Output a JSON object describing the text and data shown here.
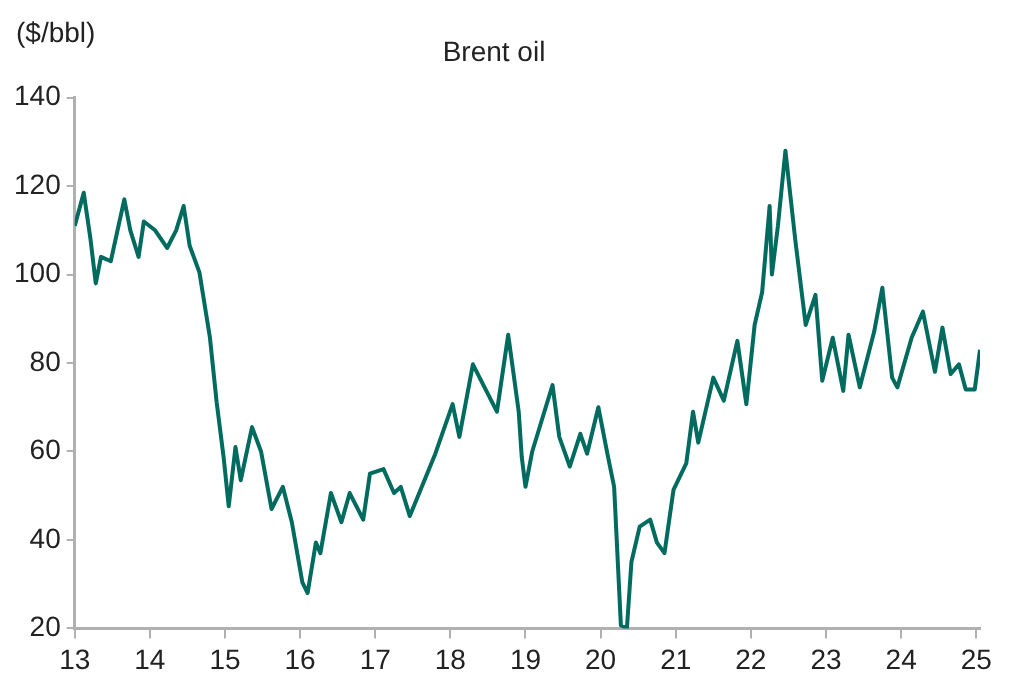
{
  "chart_data": {
    "type": "line",
    "title": "Brent oil",
    "ylabel": "($/bbl)",
    "x": [
      13.0,
      13.12,
      13.21,
      13.28,
      13.35,
      13.48,
      13.57,
      13.66,
      13.74,
      13.85,
      13.92,
      14.07,
      14.23,
      14.35,
      14.45,
      14.53,
      14.66,
      14.8,
      14.89,
      14.98,
      15.05,
      15.14,
      15.21,
      15.36,
      15.48,
      15.62,
      15.77,
      15.89,
      16.03,
      16.1,
      16.21,
      16.27,
      16.41,
      16.55,
      16.66,
      16.84,
      16.93,
      17.11,
      17.25,
      17.34,
      17.46,
      17.62,
      17.8,
      18.03,
      18.12,
      18.3,
      18.44,
      18.62,
      18.77,
      18.91,
      18.95,
      19.0,
      19.09,
      19.23,
      19.36,
      19.45,
      19.59,
      19.73,
      19.82,
      19.97,
      20.09,
      20.18,
      20.27,
      20.35,
      20.41,
      20.52,
      20.66,
      20.75,
      20.85,
      20.97,
      21.14,
      21.23,
      21.3,
      21.5,
      21.64,
      21.82,
      21.94,
      22.05,
      22.15,
      22.25,
      22.28,
      22.36,
      22.46,
      22.59,
      22.73,
      22.86,
      22.95,
      23.09,
      23.23,
      23.3,
      23.45,
      23.64,
      23.75,
      23.88,
      23.95,
      24.14,
      24.29,
      24.45,
      24.55,
      24.66,
      24.77,
      24.86,
      24.98,
      25.05
    ],
    "series": [
      {
        "color": "#006b5e",
        "values": [
          111,
          118.5,
          108,
          98,
          104,
          103,
          110,
          117,
          110,
          104,
          112,
          110,
          106,
          110,
          115.5,
          106.5,
          100.5,
          85.7,
          71,
          59,
          47.6,
          61,
          53.5,
          65.5,
          60,
          47,
          52,
          44,
          30.4,
          28,
          39.4,
          37,
          50.6,
          44,
          50.6,
          44.6,
          55,
          56,
          50.6,
          52,
          45.4,
          52,
          59.5,
          70.7,
          63.3,
          79.7,
          75,
          69,
          86.4,
          69,
          58.8,
          52,
          60,
          67.8,
          75,
          63.3,
          56.6,
          64,
          59.5,
          70,
          59.5,
          52,
          20.7,
          20,
          35,
          43,
          44.6,
          39.4,
          37,
          51.3,
          57.3,
          69,
          62,
          76.7,
          71.5,
          85,
          70.7,
          88.6,
          96,
          115.5,
          100,
          111,
          128,
          108,
          88.6,
          95.4,
          76,
          85.7,
          73.7,
          86.4,
          74.5,
          87,
          97,
          76.7,
          74.5,
          85.7,
          91.6,
          78,
          88,
          77.5,
          79.7,
          74,
          74,
          83
        ]
      }
    ],
    "xlim": [
      13,
      25.05
    ],
    "xticks": [
      13,
      14,
      15,
      16,
      17,
      18,
      19,
      20,
      21,
      22,
      23,
      24,
      25
    ],
    "ylim": [
      20,
      140
    ],
    "yticks": [
      20,
      40,
      60,
      80,
      100,
      120,
      140
    ],
    "grid": false,
    "legend": false,
    "marker": "none",
    "line_style": "solid"
  }
}
